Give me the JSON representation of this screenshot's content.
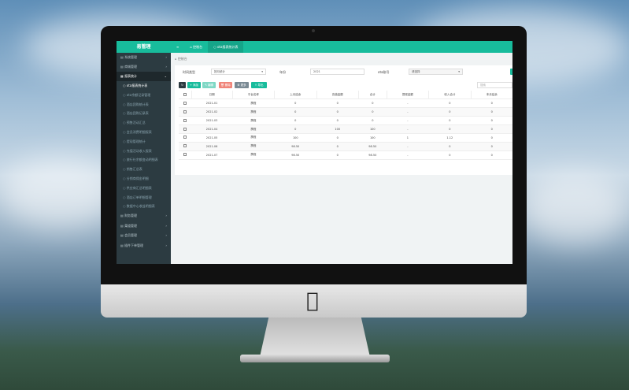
{
  "app": {
    "logo": "易管理"
  },
  "sidebar": {
    "items": [
      {
        "label": "系统管理",
        "icon": "list-icon"
      },
      {
        "label": "商城管理",
        "icon": "list-icon"
      },
      {
        "label": "报表统计",
        "icon": "chart-icon",
        "expanded": true
      }
    ],
    "children": [
      "ota报表统计表",
      "ota余额记录管理",
      "酒店团购统计表",
      "酒店团购记录表",
      "预售活动汇总",
      "会员消费明细报表",
      "提现管理统计",
      "充值活动收入报表",
      "旅行社余额变动明细表",
      "销售汇总表",
      "分销商佣金明细",
      "供应商汇总明细表",
      "酒店订单明细管理",
      "数据中心收益明细表"
    ],
    "after": [
      {
        "label": "财务管理"
      },
      {
        "label": "渠道管理"
      },
      {
        "label": "会员管理"
      },
      {
        "label": "插件下单管理"
      }
    ]
  },
  "topbar": {
    "tabs": [
      {
        "label": "控制台"
      },
      {
        "label": "ota报表统计表"
      }
    ]
  },
  "breadcrumb": "控制台",
  "filters": {
    "type_label": "时间类型",
    "type_value": "按月统计",
    "year_label": "年份",
    "year_value": "2021",
    "account_label": "ota账号",
    "account_value": "请选择"
  },
  "toolbar": {
    "add": "添加",
    "edit": "编辑",
    "delete": "删除",
    "more": "更多",
    "export": "导出",
    "search_placeholder": "搜索"
  },
  "colors": {
    "accent": "#18bc9c",
    "sidebar": "#2c3b41",
    "danger": "#f0857a"
  },
  "table": {
    "headers": [
      "日期",
      "平台名称",
      "上月结余",
      "充值金额",
      "合计",
      "提现金额",
      "收入合计",
      "本月结余"
    ],
    "rows": [
      [
        "2021-01",
        "携程",
        "0",
        "0",
        "0",
        "-",
        "0",
        "0"
      ],
      [
        "2021-02",
        "携程",
        "0",
        "0",
        "0",
        "-",
        "0",
        "0"
      ],
      [
        "2021-03",
        "携程",
        "0",
        "0",
        "0",
        "-",
        "0",
        "0"
      ],
      [
        "2021-04",
        "携程",
        "0",
        "100",
        "100",
        "-",
        "0",
        "0"
      ],
      [
        "2021-05",
        "携程",
        "100",
        "0",
        "100",
        "1",
        "1.12",
        "0"
      ],
      [
        "2021-06",
        "携程",
        "98.50",
        "0",
        "98.50",
        "-",
        "0",
        "0"
      ],
      [
        "2021-07",
        "携程",
        "98.50",
        "0",
        "98.50",
        "-",
        "0",
        "0"
      ]
    ]
  }
}
